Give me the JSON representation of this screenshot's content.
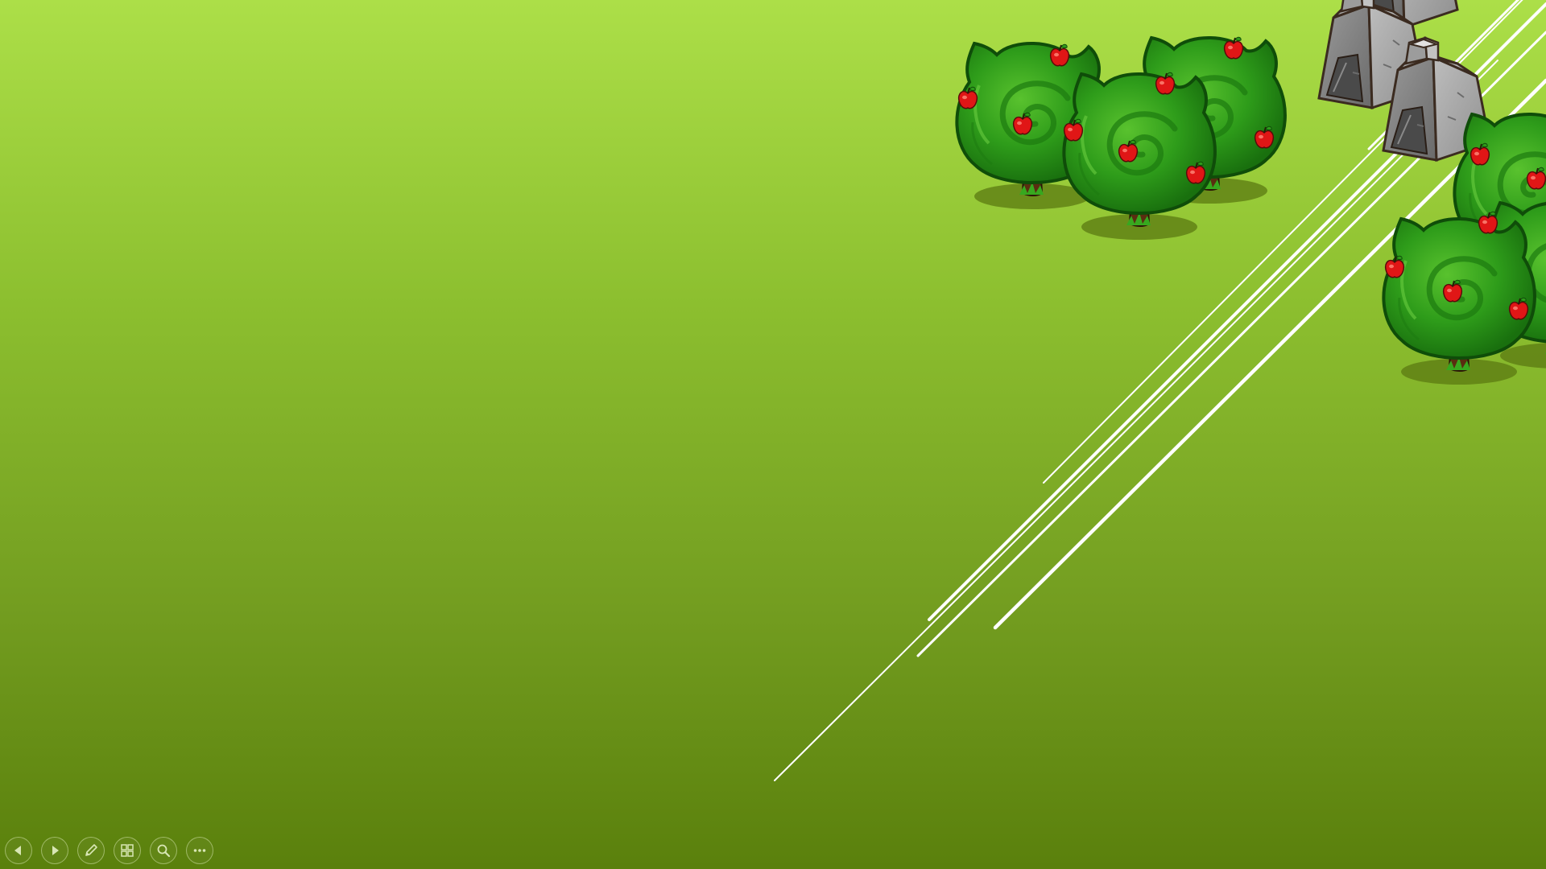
{
  "slideshow": {
    "background": {
      "gradient_top": "#acdf48",
      "gradient_bottom": "#5a800c"
    },
    "illustration": {
      "objects": [
        {
          "kind": "apple-tree",
          "count": 6
        },
        {
          "kind": "stone-hut",
          "count": 3
        },
        {
          "kind": "diagonal-line",
          "count": 6
        }
      ],
      "colors": {
        "foliage": "#2e9c1a",
        "foliage_dark": "#0f4d09",
        "apple": "#e01616",
        "trunk": "#5a2d10",
        "stone": "#7d7d7d",
        "line": "#ffffff"
      }
    },
    "toolbar": {
      "buttons": [
        {
          "name": "previous-slide-button",
          "icon": "arrow-left-icon"
        },
        {
          "name": "next-slide-button",
          "icon": "arrow-right-icon"
        },
        {
          "name": "pen-tool-button",
          "icon": "pen-icon"
        },
        {
          "name": "see-all-slides-button",
          "icon": "slides-grid-icon"
        },
        {
          "name": "zoom-button",
          "icon": "magnifier-icon"
        },
        {
          "name": "more-options-button",
          "icon": "ellipsis-icon"
        }
      ],
      "icon_color": "#d8e6b4"
    }
  }
}
